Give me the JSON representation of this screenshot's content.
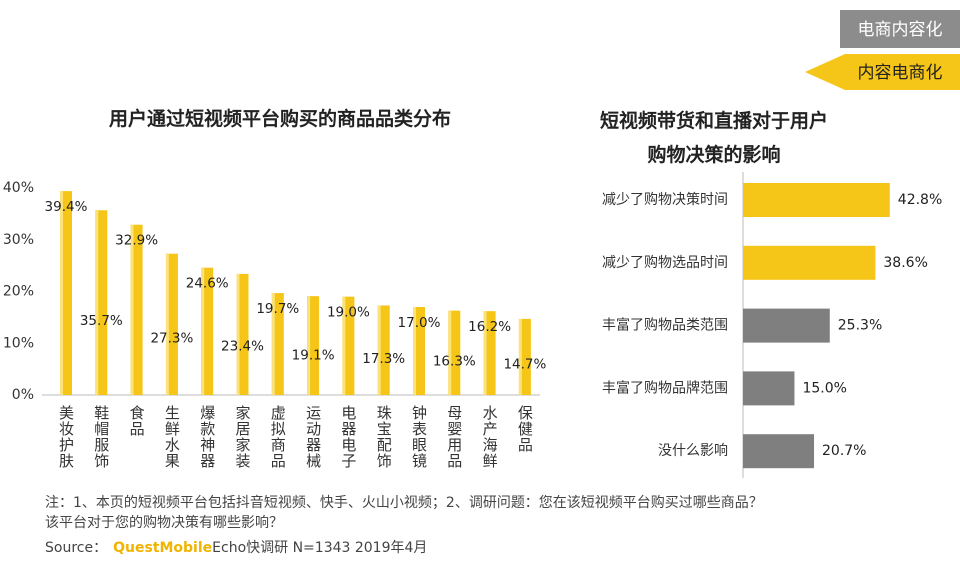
{
  "chart_data": [
    {
      "type": "bar",
      "title": "用户通过短视频平台购买的商品品类分布",
      "categories": [
        "美妆护肤",
        "鞋帽服饰",
        "食品",
        "生鲜水果",
        "爆款神器",
        "家居家装",
        "虚拟商品",
        "运动器械",
        "电器电子",
        "珠宝配饰",
        "钟表眼镜",
        "母婴用品",
        "水产海鲜",
        "保健品"
      ],
      "values": [
        39.4,
        35.7,
        32.9,
        27.3,
        24.6,
        23.4,
        19.7,
        19.1,
        19.0,
        17.3,
        17.0,
        16.3,
        16.2,
        14.7
      ],
      "value_labels": [
        "39.4%",
        "35.7%",
        "32.9%",
        "27.3%",
        "24.6%",
        "23.4%",
        "19.7%",
        "19.1%",
        "19.0%",
        "17.3%",
        "17.0%",
        "16.3%",
        "16.2%",
        "14.7%"
      ],
      "color": "#f5c518",
      "ylim": [
        0,
        40
      ],
      "yticks": [
        {
          "value": 0,
          "label": "0%"
        },
        {
          "value": 10,
          "label": "10%"
        },
        {
          "value": 20,
          "label": "20%"
        },
        {
          "value": 30,
          "label": "30%"
        },
        {
          "value": 40,
          "label": "40%"
        }
      ]
    },
    {
      "type": "hbar",
      "title": "短视频带货和直播对于用户购物决策的影响",
      "categories": [
        "减少了购物决策时间",
        "减少了购物选品时间",
        "丰富了购物品类范围",
        "丰富了购物品牌范围",
        "没什么影响"
      ],
      "values": [
        42.8,
        38.6,
        25.3,
        15.0,
        20.7
      ],
      "value_labels": [
        "42.8%",
        "38.6%",
        "25.3%",
        "15.0%",
        "20.7%"
      ],
      "colors": [
        "#f5c518",
        "#f5c518",
        "#7f7f7f",
        "#7f7f7f",
        "#7f7f7f"
      ]
    }
  ],
  "tags": [
    "电商内容化",
    "内容电商化"
  ],
  "notes": [
    "注：1、本页的短视频平台包括抖音短视频、快手、火山小视频；2、调研问题：您在该短视频平台购买过哪些商品？",
    "该平台对于您的购物决策有哪些影响？"
  ],
  "source": [
    "Source：",
    "QuestMobile",
    "Echo快调研 N=1343 2019年4月"
  ]
}
